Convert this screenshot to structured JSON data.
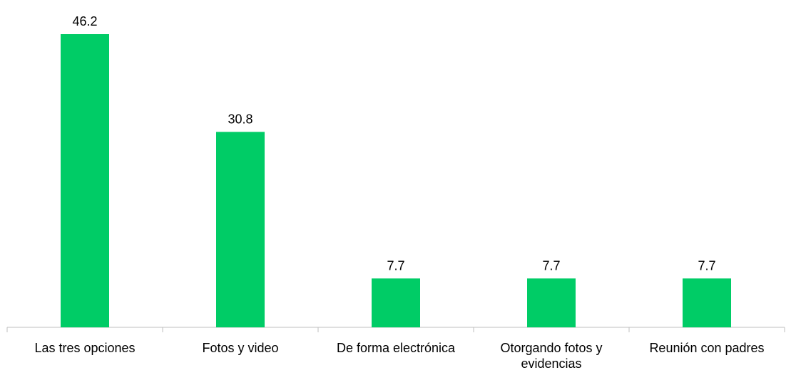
{
  "chart_data": {
    "type": "bar",
    "categories": [
      "Las tres opciones",
      "Fotos y video",
      "De forma electrónica",
      "Otorgando fotos y evidencias",
      "Reunión con padres"
    ],
    "values": [
      46.2,
      30.8,
      7.7,
      7.7,
      7.7
    ],
    "color": "#00cc66"
  }
}
